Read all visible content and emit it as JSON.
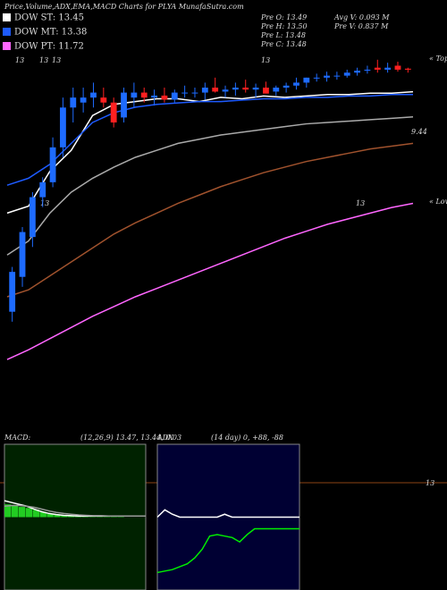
{
  "header": {
    "title": "Price,Volume,ADX,EMA,MACD Charts for PLYA MunafaSutra.com",
    "legend": [
      {
        "label": "DOW ST: 13.45",
        "color": "#ffffff"
      },
      {
        "label": "DOW MT: 13.38",
        "color": "#1e5bff"
      },
      {
        "label": "DOW PT: 11.72",
        "color": "#ff66ff"
      }
    ],
    "info": [
      "Pre  O: 13.49",
      "Pre  H: 13.50",
      "Pre  L: 13.48",
      "Pre  C: 13.48",
      "Avg V: 0.093 M",
      "Pre  V: 0.837 M"
    ]
  },
  "annotations": [
    "13",
    "13",
    "13",
    "13",
    "13",
    "13",
    "9.44",
    "« Tops",
    "« Lows",
    "13"
  ],
  "chart_data": [
    {
      "type": "candlestick",
      "up_color": "#1e6bff",
      "down_color": "#ff2020",
      "ylim": [
        10.5,
        14.0
      ],
      "y2lim": [
        11.5,
        14.0
      ],
      "open": [
        11.05,
        11.4,
        11.8,
        12.2,
        12.35,
        12.7,
        13.1,
        13.15,
        13.2,
        13.2,
        13.15,
        13.0,
        13.2,
        13.25,
        13.2,
        13.22,
        13.18,
        13.25,
        13.25,
        13.25,
        13.3,
        13.26,
        13.28,
        13.3,
        13.28,
        13.3,
        13.26,
        13.3,
        13.32,
        13.35,
        13.4,
        13.4,
        13.42,
        13.42,
        13.45,
        13.47,
        13.5,
        13.48,
        13.52,
        13.49
      ],
      "high": [
        11.5,
        11.9,
        12.25,
        12.4,
        12.8,
        13.2,
        13.3,
        13.3,
        13.35,
        13.3,
        13.2,
        13.3,
        13.35,
        13.3,
        13.28,
        13.3,
        13.28,
        13.32,
        13.3,
        13.35,
        13.4,
        13.32,
        13.35,
        13.38,
        13.34,
        13.36,
        13.32,
        13.35,
        13.4,
        13.4,
        13.44,
        13.46,
        13.46,
        13.48,
        13.5,
        13.52,
        13.58,
        13.55,
        13.56,
        13.5
      ],
      "low": [
        10.95,
        11.3,
        11.7,
        12.1,
        12.3,
        12.6,
        12.95,
        13.05,
        13.1,
        13.1,
        12.9,
        12.95,
        13.1,
        13.15,
        13.12,
        13.15,
        13.15,
        13.2,
        13.2,
        13.18,
        13.25,
        13.2,
        13.22,
        13.25,
        13.2,
        13.25,
        13.22,
        13.25,
        13.28,
        13.3,
        13.36,
        13.36,
        13.38,
        13.4,
        13.42,
        13.44,
        13.45,
        13.45,
        13.46,
        13.45
      ],
      "close": [
        11.45,
        11.85,
        12.2,
        12.35,
        12.7,
        13.1,
        13.2,
        13.2,
        13.25,
        13.15,
        12.95,
        13.25,
        13.25,
        13.2,
        13.22,
        13.18,
        13.25,
        13.25,
        13.25,
        13.3,
        13.26,
        13.28,
        13.3,
        13.28,
        13.3,
        13.24,
        13.3,
        13.32,
        13.35,
        13.4,
        13.4,
        13.42,
        13.42,
        13.45,
        13.47,
        13.48,
        13.48,
        13.5,
        13.48,
        13.48
      ],
      "series": [
        {
          "color": "#ffffff",
          "axis": "y2",
          "values": [
            12.6,
            12.65,
            12.9,
            13.05,
            13.3,
            13.38,
            13.4,
            13.42,
            13.42,
            13.4,
            13.43,
            13.42,
            13.44,
            13.43,
            13.44,
            13.45,
            13.45,
            13.46,
            13.46,
            13.47
          ]
        },
        {
          "color": "#1e5bff",
          "axis": "y2",
          "values": [
            12.8,
            12.85,
            12.95,
            13.1,
            13.25,
            13.32,
            13.36,
            13.38,
            13.39,
            13.4,
            13.4,
            13.41,
            13.42,
            13.42,
            13.43,
            13.43,
            13.44,
            13.44,
            13.45,
            13.45
          ]
        },
        {
          "color": "#aaaaaa",
          "axis": "y2",
          "values": [
            12.3,
            12.4,
            12.6,
            12.75,
            12.85,
            12.93,
            13.0,
            13.05,
            13.1,
            13.13,
            13.16,
            13.18,
            13.2,
            13.22,
            13.24,
            13.25,
            13.26,
            13.27,
            13.28,
            13.29
          ]
        },
        {
          "color": "#a0522d",
          "axis": "y2",
          "values": [
            12.0,
            12.05,
            12.15,
            12.25,
            12.35,
            12.45,
            12.53,
            12.6,
            12.67,
            12.73,
            12.79,
            12.84,
            12.89,
            12.93,
            12.97,
            13.0,
            13.03,
            13.06,
            13.08,
            13.1
          ]
        },
        {
          "color": "#ff66ff",
          "axis": "y2",
          "values": [
            11.55,
            11.62,
            11.7,
            11.78,
            11.86,
            11.93,
            12.0,
            12.06,
            12.12,
            12.18,
            12.24,
            12.3,
            12.36,
            12.42,
            12.47,
            12.52,
            12.56,
            12.6,
            12.64,
            12.67
          ]
        }
      ]
    },
    {
      "type": "macd",
      "title": "MACD:",
      "subtitle": "(12,26,9) 13.47, 13.44, 0.03",
      "ylim": [
        -2,
        2
      ],
      "background": "#002200",
      "histogram": {
        "color": "#22cc22",
        "values": [
          0.35,
          0.32,
          0.28,
          0.25,
          0.2,
          0.14,
          0.09,
          0.06,
          0.04,
          0.03,
          0.02,
          0.02,
          0.01,
          0.01,
          0.01,
          0.01,
          0.01,
          0.0,
          0.0,
          0.0
        ]
      },
      "series": [
        {
          "color": "#ffffff",
          "values": [
            0.45,
            0.4,
            0.35,
            0.3,
            0.22,
            0.15,
            0.1,
            0.07,
            0.05,
            0.04,
            0.03,
            0.03,
            0.03,
            0.03,
            0.03,
            0.03,
            0.03,
            0.03,
            0.03,
            0.03
          ]
        },
        {
          "color": "#999999",
          "values": [
            0.3,
            0.32,
            0.32,
            0.3,
            0.27,
            0.22,
            0.17,
            0.13,
            0.1,
            0.08,
            0.06,
            0.05,
            0.04,
            0.04,
            0.03,
            0.03,
            0.03,
            0.03,
            0.03,
            0.03
          ]
        }
      ]
    },
    {
      "type": "adx",
      "title": "ADX",
      "subtitle": "(14 day) 0, +88, -88",
      "ylim": [
        0,
        100
      ],
      "background": "#000033",
      "series": [
        {
          "color": "#ffffff",
          "values": [
            50,
            55,
            52,
            50,
            50,
            50,
            50,
            50,
            50,
            52,
            50,
            50,
            50,
            50,
            50,
            50,
            50,
            50,
            50,
            50
          ]
        },
        {
          "color": "#00ee00",
          "values": [
            12,
            13,
            14,
            16,
            18,
            22,
            28,
            37,
            38,
            37,
            36,
            33,
            38,
            42,
            42,
            42,
            42,
            42,
            42,
            42
          ]
        }
      ]
    }
  ]
}
